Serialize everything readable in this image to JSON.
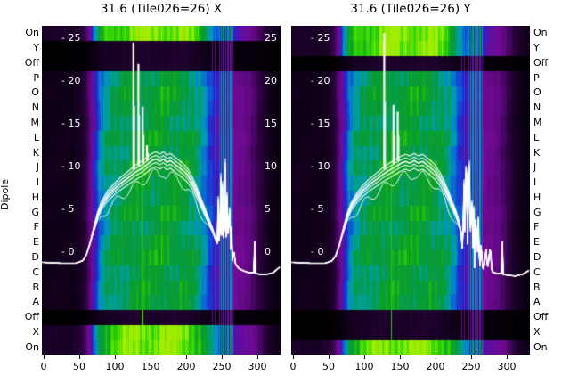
{
  "figure": {
    "y_axis_label": "Dipole",
    "background": "#ffffff"
  },
  "panels": [
    {
      "title": "31.6 (Tile026=26) X"
    },
    {
      "title": "31.6 (Tile026=26) Y"
    }
  ],
  "axes": {
    "x_tick_labels": [
      "0",
      "50",
      "100",
      "150",
      "200",
      "250",
      "300"
    ],
    "x_tick_values": [
      0,
      50,
      100,
      150,
      200,
      250,
      300
    ],
    "dipole_labels": [
      "On",
      "Y",
      "Off",
      "P",
      "O",
      "N",
      "M",
      "L",
      "K",
      "J",
      "I",
      "H",
      "G",
      "F",
      "E",
      "D",
      "C",
      "B",
      "A",
      "Off",
      "X",
      "On"
    ],
    "db_inner_labels": [
      "- 25",
      "- 20",
      "- 15",
      "- 10",
      "- 5",
      "- 0"
    ],
    "db_edge_labels": [
      "25",
      "20",
      "15",
      "10",
      "5",
      "0"
    ],
    "db_values": [
      25,
      20,
      15,
      10,
      5,
      0
    ]
  },
  "colors": {
    "background": "#ffffff",
    "text": "#000000",
    "overlay_line": "#ffffff",
    "colormap_stops": [
      [
        0.0,
        "#000000"
      ],
      [
        0.05,
        "#0c0014"
      ],
      [
        0.12,
        "#2c0340"
      ],
      [
        0.2,
        "#5c087e"
      ],
      [
        0.27,
        "#740a96"
      ],
      [
        0.33,
        "#5a10a0"
      ],
      [
        0.4,
        "#2a22cc"
      ],
      [
        0.48,
        "#0a5ad8"
      ],
      [
        0.55,
        "#0096be"
      ],
      [
        0.61,
        "#00a08c"
      ],
      [
        0.68,
        "#089a3c"
      ],
      [
        0.75,
        "#0aa028"
      ],
      [
        0.83,
        "#28c80a"
      ],
      [
        0.91,
        "#46e100"
      ],
      [
        1.0,
        "#b4ee00"
      ]
    ]
  },
  "chart_data": [
    {
      "type": "heatmap",
      "title": "31.6 (Tile026=26) X",
      "ylabel": "Dipole",
      "x_range": [
        0,
        332
      ],
      "x_ticks": [
        0,
        50,
        100,
        150,
        200,
        250,
        300
      ],
      "row_labels": [
        "On",
        "Y",
        "Off",
        "P",
        "O",
        "N",
        "M",
        "L",
        "K",
        "J",
        "I",
        "H",
        "G",
        "F",
        "E",
        "D",
        "C",
        "B",
        "A",
        "Off",
        "X",
        "On"
      ],
      "row_gains": [
        1.12,
        0.1,
        0.1,
        0.8,
        0.85,
        0.82,
        0.78,
        0.85,
        0.8,
        0.86,
        0.82,
        0.8,
        0.85,
        0.78,
        0.83,
        0.86,
        0.8,
        0.84,
        0.82,
        0.1,
        1.12,
        1.12
      ],
      "db_axis": {
        "ticks": [
          25,
          20,
          15,
          10,
          5,
          0
        ],
        "range": [
          -3,
          26
        ]
      },
      "bandpass": [
        [
          0,
          0.07
        ],
        [
          40,
          0.07
        ],
        [
          52,
          0.09
        ],
        [
          60,
          0.16
        ],
        [
          66,
          0.3
        ],
        [
          72,
          0.48
        ],
        [
          78,
          0.62
        ],
        [
          85,
          0.72
        ],
        [
          95,
          0.78
        ],
        [
          105,
          0.8
        ],
        [
          115,
          0.83
        ],
        [
          128,
          0.86
        ],
        [
          140,
          0.88
        ],
        [
          152,
          0.85
        ],
        [
          165,
          0.88
        ],
        [
          178,
          0.86
        ],
        [
          190,
          0.86
        ],
        [
          200,
          0.84
        ],
        [
          208,
          0.81
        ],
        [
          216,
          0.75
        ],
        [
          224,
          0.66
        ],
        [
          230,
          0.58
        ],
        [
          236,
          0.5
        ],
        [
          243,
          0.44
        ],
        [
          249,
          0.38
        ],
        [
          254,
          0.34
        ],
        [
          262,
          0.33
        ],
        [
          270,
          0.31
        ],
        [
          278,
          0.29
        ],
        [
          286,
          0.26
        ],
        [
          294,
          0.21
        ],
        [
          302,
          0.15
        ],
        [
          310,
          0.1
        ],
        [
          318,
          0.07
        ],
        [
          332,
          0.05
        ]
      ],
      "rfi_columns": [
        {
          "x": 236,
          "w": 0.7,
          "level": 0.4
        },
        {
          "x": 240,
          "w": 0.7,
          "level": 0.44
        },
        {
          "x": 246,
          "w": 0.8,
          "level": 0.5
        },
        {
          "x": 249,
          "w": 0.8,
          "level": 0.58
        },
        {
          "x": 252,
          "w": 1.0,
          "level": 0.54
        },
        {
          "x": 255,
          "w": 0.8,
          "level": 0.62
        },
        {
          "x": 258,
          "w": 0.8,
          "level": 0.5
        },
        {
          "x": 262,
          "w": 1.0,
          "level": 0.58
        },
        {
          "x": 265,
          "w": 0.8,
          "level": 0.48
        }
      ],
      "marker_lines": [
        {
          "x": 138,
          "w": 0.7,
          "level": 0.82,
          "row_start": 8,
          "row_end": 21
        },
        {
          "x": 127,
          "w": 0.6,
          "level": 0.75,
          "row_start": 14,
          "row_end": 18
        },
        {
          "x": 139,
          "w": 0.6,
          "level": 0.97,
          "row_start": 19,
          "row_end": 20
        }
      ],
      "overlay": {
        "main_path": [
          [
            0,
            -1.2
          ],
          [
            25,
            -1.3
          ],
          [
            45,
            -1.3
          ],
          [
            55,
            -1.0
          ],
          [
            60,
            -0.3
          ],
          [
            65,
            1.0
          ],
          [
            70,
            2.6
          ],
          [
            76,
            4.4
          ],
          [
            82,
            5.6
          ],
          [
            90,
            6.6
          ],
          [
            98,
            7.3
          ],
          [
            106,
            7.9
          ],
          [
            114,
            8.4
          ],
          [
            122,
            8.9
          ],
          [
            128,
            9.3
          ],
          [
            134,
            9.6
          ],
          [
            140,
            9.9
          ],
          [
            146,
            10.3
          ],
          [
            152,
            10.7
          ],
          [
            158,
            10.9
          ],
          [
            163,
            10.6
          ],
          [
            168,
            10.9
          ],
          [
            173,
            10.5
          ],
          [
            178,
            10.7
          ],
          [
            184,
            10.3
          ],
          [
            190,
            9.9
          ],
          [
            196,
            9.5
          ],
          [
            202,
            9.0
          ],
          [
            208,
            8.2
          ],
          [
            214,
            7.2
          ],
          [
            220,
            6.0
          ],
          [
            226,
            4.8
          ],
          [
            232,
            3.6
          ],
          [
            237,
            2.6
          ],
          [
            241,
            1.6
          ],
          [
            244,
            1.0
          ],
          [
            245,
            6.0
          ],
          [
            246,
            1.2
          ],
          [
            248,
            3.0
          ],
          [
            249,
            10.3
          ],
          [
            250,
            2.2
          ],
          [
            251,
            9.7
          ],
          [
            252,
            1.2
          ],
          [
            254,
            3.6
          ],
          [
            255,
            10.1
          ],
          [
            256,
            1.0
          ],
          [
            258,
            8.2
          ],
          [
            259,
            0.4
          ],
          [
            261,
            6.6
          ],
          [
            262,
            -0.6
          ],
          [
            264,
            3.2
          ],
          [
            265,
            -1.0
          ],
          [
            267,
            0.4
          ],
          [
            269,
            -1.4
          ],
          [
            274,
            -1.9
          ],
          [
            281,
            -2.2
          ],
          [
            288,
            -2.4
          ],
          [
            295,
            -2.4
          ],
          [
            296,
            2.4
          ],
          [
            297,
            -2.5
          ],
          [
            304,
            -2.6
          ],
          [
            313,
            -2.6
          ],
          [
            322,
            -2.4
          ],
          [
            332,
            -1.7
          ]
        ],
        "spikes": [
          {
            "x": 126,
            "db": 24.5
          },
          {
            "x": 133,
            "db": 22.0
          },
          {
            "x": 139,
            "db": 17.0
          },
          {
            "x": 145,
            "db": 12.5
          }
        ],
        "bundle_offsets": [
          0,
          0.35,
          -0.35,
          0.7,
          -0.75
        ],
        "low_trace": {
          "offset": 1.6,
          "wiggle_amp": 0.5,
          "wiggle_period": 4.3
        }
      },
      "show_edge_db": true
    },
    {
      "type": "heatmap",
      "title": "31.6 (Tile026=26) Y",
      "ylabel": "Dipole",
      "x_range": [
        0,
        332
      ],
      "x_ticks": [
        0,
        50,
        100,
        150,
        200,
        250,
        300
      ],
      "row_labels": [
        "On",
        "Y",
        "Off",
        "P",
        "O",
        "N",
        "M",
        "L",
        "K",
        "J",
        "I",
        "H",
        "G",
        "F",
        "E",
        "D",
        "C",
        "B",
        "A",
        "Off",
        "X",
        "On"
      ],
      "row_gains": [
        1.12,
        1.12,
        0.1,
        0.8,
        0.85,
        0.82,
        0.78,
        0.85,
        0.8,
        0.86,
        0.82,
        0.8,
        0.85,
        0.78,
        0.83,
        0.86,
        0.8,
        0.84,
        0.82,
        0.1,
        0.1,
        1.12
      ],
      "db_axis": {
        "ticks": [
          25,
          20,
          15,
          10,
          5,
          0
        ],
        "range": [
          -3,
          26
        ]
      },
      "bandpass": [
        [
          0,
          0.07
        ],
        [
          40,
          0.07
        ],
        [
          52,
          0.09
        ],
        [
          60,
          0.16
        ],
        [
          66,
          0.3
        ],
        [
          72,
          0.48
        ],
        [
          78,
          0.62
        ],
        [
          85,
          0.72
        ],
        [
          95,
          0.78
        ],
        [
          105,
          0.8
        ],
        [
          115,
          0.83
        ],
        [
          128,
          0.86
        ],
        [
          140,
          0.88
        ],
        [
          152,
          0.85
        ],
        [
          165,
          0.88
        ],
        [
          178,
          0.86
        ],
        [
          190,
          0.86
        ],
        [
          200,
          0.84
        ],
        [
          208,
          0.81
        ],
        [
          216,
          0.75
        ],
        [
          224,
          0.66
        ],
        [
          230,
          0.58
        ],
        [
          236,
          0.5
        ],
        [
          243,
          0.44
        ],
        [
          249,
          0.38
        ],
        [
          254,
          0.34
        ],
        [
          262,
          0.33
        ],
        [
          270,
          0.31
        ],
        [
          278,
          0.29
        ],
        [
          286,
          0.26
        ],
        [
          294,
          0.21
        ],
        [
          302,
          0.15
        ],
        [
          310,
          0.1
        ],
        [
          318,
          0.07
        ],
        [
          332,
          0.05
        ]
      ],
      "rfi_columns": [
        {
          "x": 236,
          "w": 0.7,
          "level": 0.4
        },
        {
          "x": 240,
          "w": 0.7,
          "level": 0.44
        },
        {
          "x": 246,
          "w": 0.8,
          "level": 0.5
        },
        {
          "x": 249,
          "w": 0.8,
          "level": 0.58
        },
        {
          "x": 252,
          "w": 1.0,
          "level": 0.54
        },
        {
          "x": 255,
          "w": 0.8,
          "level": 0.62
        },
        {
          "x": 258,
          "w": 0.8,
          "level": 0.5
        },
        {
          "x": 262,
          "w": 1.0,
          "level": 0.58
        },
        {
          "x": 265,
          "w": 0.8,
          "level": 0.48
        }
      ],
      "marker_lines": [
        {
          "x": 138,
          "w": 0.7,
          "level": 0.82,
          "row_start": 7,
          "row_end": 21
        }
      ],
      "overlay": {
        "main_path": [
          [
            0,
            -1.2
          ],
          [
            25,
            -1.3
          ],
          [
            45,
            -1.3
          ],
          [
            55,
            -1.0
          ],
          [
            60,
            -0.4
          ],
          [
            65,
            0.8
          ],
          [
            70,
            2.4
          ],
          [
            76,
            4.2
          ],
          [
            82,
            5.4
          ],
          [
            90,
            6.4
          ],
          [
            98,
            7.2
          ],
          [
            106,
            7.8
          ],
          [
            114,
            8.3
          ],
          [
            122,
            8.8
          ],
          [
            128,
            9.2
          ],
          [
            134,
            9.5
          ],
          [
            140,
            9.8
          ],
          [
            146,
            10.1
          ],
          [
            152,
            10.4
          ],
          [
            158,
            10.6
          ],
          [
            164,
            10.4
          ],
          [
            170,
            10.7
          ],
          [
            176,
            10.4
          ],
          [
            182,
            10.6
          ],
          [
            188,
            10.2
          ],
          [
            194,
            9.8
          ],
          [
            200,
            9.3
          ],
          [
            206,
            8.6
          ],
          [
            212,
            7.7
          ],
          [
            218,
            6.6
          ],
          [
            224,
            5.4
          ],
          [
            229,
            4.4
          ],
          [
            233,
            3.4
          ],
          [
            236,
            2.4
          ],
          [
            238,
            -0.2
          ],
          [
            240,
            7.8
          ],
          [
            241,
            0.4
          ],
          [
            242,
            9.4
          ],
          [
            244,
            8.8
          ],
          [
            245,
            1.0
          ],
          [
            246,
            8.4
          ],
          [
            248,
            10.3
          ],
          [
            249,
            0.6
          ],
          [
            251,
            7.8
          ],
          [
            252,
            -1.2
          ],
          [
            254,
            5.8
          ],
          [
            255,
            -1.8
          ],
          [
            257,
            6.8
          ],
          [
            258,
            -2.2
          ],
          [
            260,
            3.8
          ],
          [
            262,
            -2.5
          ],
          [
            264,
            1.2
          ],
          [
            266,
            -1.8
          ],
          [
            268,
            -2.0
          ],
          [
            271,
            0.6
          ],
          [
            273,
            -2.2
          ],
          [
            277,
            0.8
          ],
          [
            279,
            -2.3
          ],
          [
            286,
            -2.5
          ],
          [
            293,
            -2.5
          ],
          [
            294,
            2.4
          ],
          [
            295,
            -2.6
          ],
          [
            302,
            -2.7
          ],
          [
            312,
            -2.8
          ],
          [
            322,
            -2.6
          ],
          [
            332,
            -2.1
          ]
        ],
        "spikes": [
          {
            "x": 128,
            "db": 25.6
          },
          {
            "x": 141,
            "db": 17.2
          },
          {
            "x": 147,
            "db": 16.4
          }
        ],
        "bundle_offsets": [
          0,
          0.35,
          -0.35,
          0.7,
          -0.75
        ],
        "low_trace": {
          "offset": 1.6,
          "wiggle_amp": 0.5,
          "wiggle_period": 4.3
        }
      },
      "show_edge_db": false
    }
  ]
}
